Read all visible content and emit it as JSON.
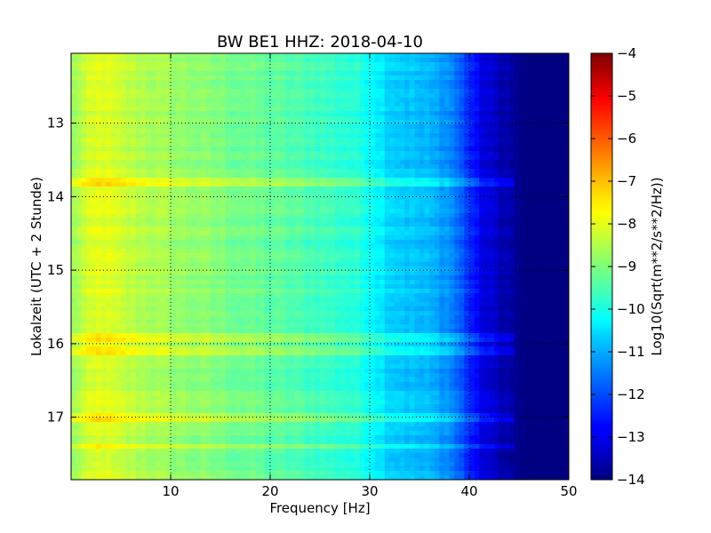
{
  "chart_data": {
    "type": "heatmap",
    "title": "BW BE1 HHZ: 2018-04-10",
    "xlabel": "Frequency [Hz]",
    "ylabel": "Lokalzeit (UTC + 2 Stunde)",
    "xlim": [
      0,
      50
    ],
    "ylim": [
      12.05,
      17.85
    ],
    "y_inverted": true,
    "xticks": [
      10,
      20,
      30,
      40,
      50
    ],
    "yticks": [
      13,
      14,
      15,
      16,
      17
    ],
    "grid": true,
    "colormap": "jet",
    "colorbar": {
      "label": "Log10(Sqrt(m**2/s**2/Hz))",
      "range": [
        -14,
        -4
      ],
      "ticks": [
        -14,
        -13,
        -12,
        -11,
        -10,
        -9,
        -8,
        -7,
        -6,
        -5,
        -4
      ]
    },
    "spectrum_profile": {
      "frequency_hz": [
        0,
        1,
        3,
        5,
        10,
        15,
        20,
        25,
        28,
        30,
        32,
        34,
        36,
        38,
        39,
        40,
        41,
        42,
        43,
        44,
        45,
        46,
        50
      ],
      "log10_amplitude": [
        -8.8,
        -8.4,
        -8.0,
        -8.3,
        -8.7,
        -9.0,
        -9.3,
        -9.6,
        -9.8,
        -10.1,
        -10.6,
        -10.8,
        -11.0,
        -11.3,
        -11.8,
        -12.3,
        -12.9,
        -13.2,
        -13.4,
        -13.6,
        -13.9,
        -14.0,
        -14.0
      ]
    },
    "bright_bands_hours": [
      13.8,
      15.9,
      16.1,
      17.0,
      17.4
    ]
  }
}
